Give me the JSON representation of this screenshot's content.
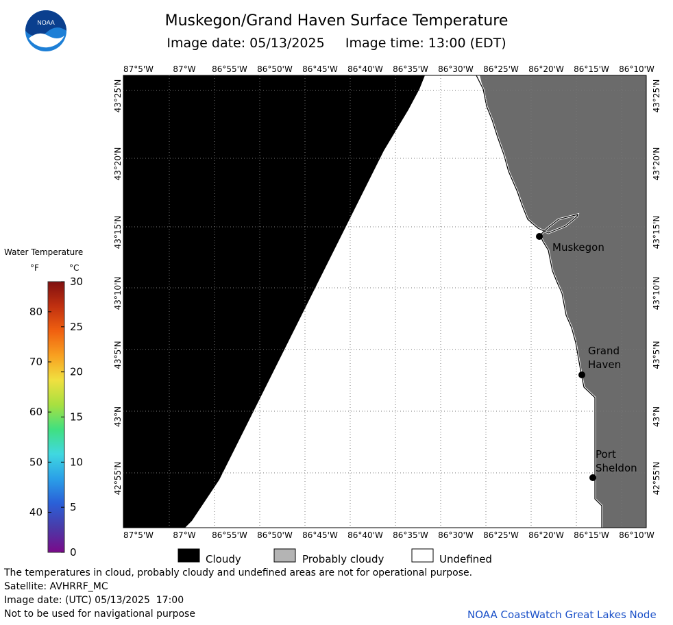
{
  "header": {
    "title": "Muskegon/Grand Haven Surface Temperature",
    "subtitle": "Image date: 05/13/2025     Image time: 13:00 (EDT)",
    "logo_text": "NOAA"
  },
  "legend": {
    "title": "Water Temperature",
    "unit_f": "°F",
    "unit_c": "°C",
    "f_labels": [
      "40",
      "50",
      "60",
      "70",
      "80"
    ],
    "c_labels": [
      "0",
      "5",
      "10",
      "15",
      "20",
      "25",
      "30"
    ],
    "colors": [
      "#7a0a8a",
      "#4a3aa8",
      "#2a60d8",
      "#2aa0e8",
      "#40d8e0",
      "#40e080",
      "#a8e040",
      "#f0e040",
      "#f8a020",
      "#f06010",
      "#c03010",
      "#801010"
    ]
  },
  "map": {
    "longitudes": [
      "87°5'W",
      "87°W",
      "86°55'W",
      "86°50'W",
      "86°45'W",
      "86°40'W",
      "86°35'W",
      "86°30'W",
      "86°25'W",
      "86°20'W",
      "86°15'W",
      "86°10'W"
    ],
    "latitudes": [
      "43°25'N",
      "43°20'N",
      "43°15'N",
      "43°10'N",
      "43°5'N",
      "43°N",
      "42°55'N"
    ],
    "cities": [
      {
        "name": "Muskegon",
        "lines": [
          "Muskegon"
        ]
      },
      {
        "name": "Grand Haven",
        "lines": [
          "Grand",
          "Haven"
        ]
      },
      {
        "name": "Port Sheldon",
        "lines": [
          "Port",
          "Sheldon"
        ]
      }
    ],
    "colors": {
      "cloudy": "#000000",
      "probably_cloudy": "#6b6b6b",
      "undefined": "#ffffff"
    }
  },
  "key": {
    "cloudy": "Cloudy",
    "probably_cloudy": "Probably cloudy",
    "undefined": "Undefined"
  },
  "footer": {
    "note": "The temperatures in cloud, probably cloudy and undefined areas are not for operational purpose.",
    "satellite": "Satellite: AVHRRF_MC",
    "image_date_utc": "Image date: (UTC) 05/13/2025  17:00",
    "navigation": "Not to be used for navigational purpose",
    "credit": "NOAA CoastWatch Great Lakes Node"
  }
}
